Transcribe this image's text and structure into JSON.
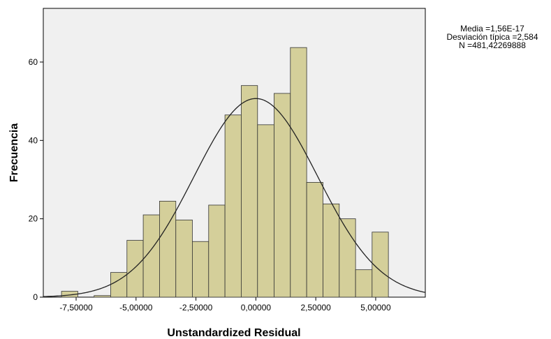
{
  "chart_data": {
    "type": "histogram",
    "x_label": "Unstandardized Residual",
    "y_label": "Frecuencia",
    "bins": [
      -8.11,
      -7.43,
      -6.75,
      -6.06,
      -5.38,
      -4.7,
      -4.02,
      -3.34,
      -2.65,
      -1.97,
      -1.29,
      -0.61,
      0.07,
      0.76,
      1.44,
      2.12,
      2.8,
      3.48,
      4.16,
      4.85,
      5.53
    ],
    "counts": [
      1.5,
      0,
      0.4,
      6.3,
      14.5,
      21,
      24.5,
      19.7,
      14.2,
      23.5,
      46.5,
      54,
      44,
      52,
      63.7,
      29.3,
      23.8,
      20,
      7,
      16.6
    ],
    "color": "#d4cf9a",
    "xlim": [
      -8.87,
      7.07
    ],
    "ylim": [
      0,
      73.7
    ],
    "xticks": [
      {
        "value": -7.5,
        "label": "-7,50000"
      },
      {
        "value": -5,
        "label": "-5,00000"
      },
      {
        "value": -2.5,
        "label": "-2,50000"
      },
      {
        "value": 0,
        "label": "0,00000"
      },
      {
        "value": 2.5,
        "label": "2,50000"
      },
      {
        "value": 5,
        "label": "5,00000"
      }
    ],
    "yticks": [
      0,
      20,
      40,
      60
    ],
    "normal_curve": {
      "mean": 1.56e-17,
      "sd": 2.584,
      "n": 481.42269888
    },
    "stats_text": [
      "Media =1,56E-17",
      "Desviación típica =2,584",
      "N =481,42269888"
    ]
  }
}
